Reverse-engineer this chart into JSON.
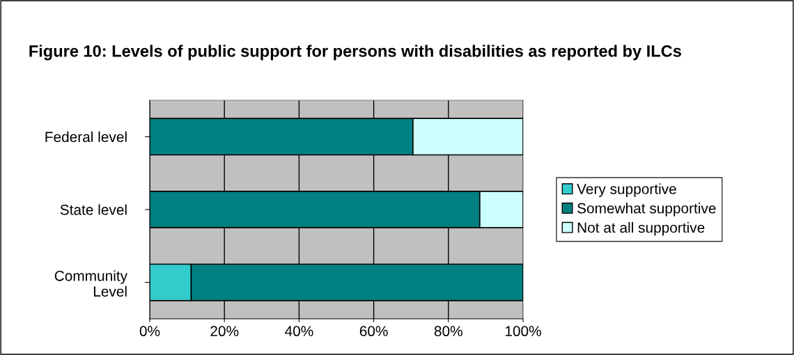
{
  "chart_data": {
    "type": "bar",
    "orientation": "horizontal",
    "stacked": true,
    "title": "Figure 10: Levels of public support for persons with disabilities as reported by ILCs",
    "categories": [
      "Federal level",
      "State level",
      "Community\nLevel"
    ],
    "series": [
      {
        "name": "Very supportive",
        "color": "#33cccc",
        "values": [
          0,
          0,
          11.1
        ]
      },
      {
        "name": "Somewhat supportive",
        "color": "#008080",
        "values": [
          70.5,
          88.4,
          88.9
        ]
      },
      {
        "name": "Not at all supportive",
        "color": "#ccffff",
        "values": [
          29.5,
          11.6,
          0
        ]
      }
    ],
    "xlim": [
      0,
      100
    ],
    "xticks": [
      {
        "value": 0,
        "label": "0%"
      },
      {
        "value": 20,
        "label": "20%"
      },
      {
        "value": 40,
        "label": "40%"
      },
      {
        "value": 60,
        "label": "60%"
      },
      {
        "value": 80,
        "label": "80%"
      },
      {
        "value": 100,
        "label": "100%"
      }
    ],
    "grid": "x",
    "legend": "right"
  }
}
